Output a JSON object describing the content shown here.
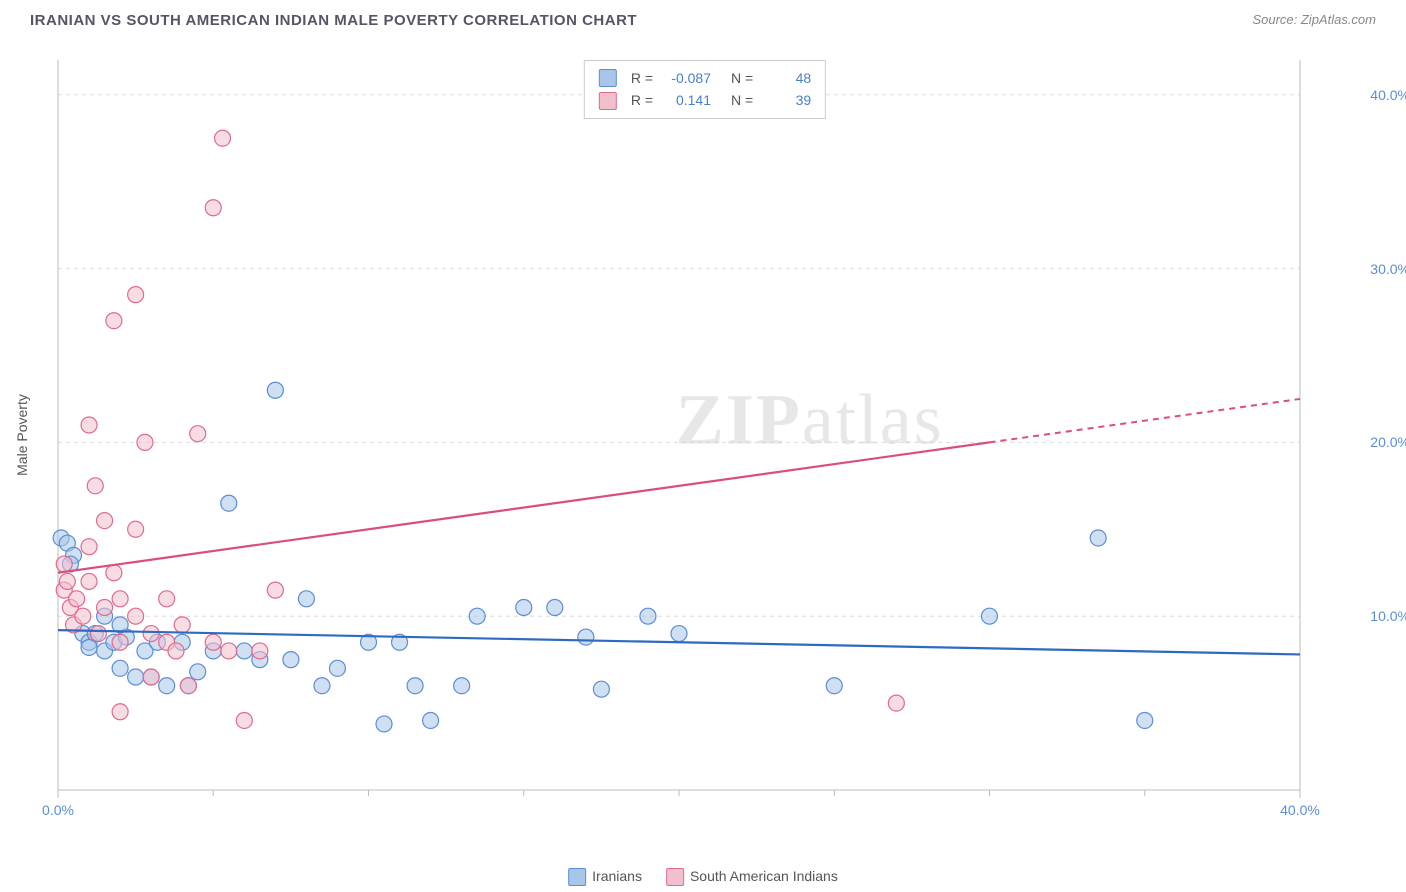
{
  "title": "IRANIAN VS SOUTH AMERICAN INDIAN MALE POVERTY CORRELATION CHART",
  "source_label": "Source: ",
  "source_name": "ZipAtlas.com",
  "ylabel": "Male Poverty",
  "watermark_a": "ZIP",
  "watermark_b": "atlas",
  "chart": {
    "type": "scatter",
    "xlim": [
      0,
      40
    ],
    "ylim": [
      0,
      42
    ],
    "xticks": [
      0,
      40
    ],
    "xtick_labels": [
      "0.0%",
      "40.0%"
    ],
    "xtick_minor": [
      5,
      10,
      15,
      20,
      25,
      30,
      35
    ],
    "yticks": [
      10,
      20,
      30,
      40
    ],
    "ytick_labels": [
      "10.0%",
      "20.0%",
      "30.0%",
      "40.0%"
    ],
    "grid_color": "#dddddd",
    "axis_color": "#bbbbbb",
    "background_color": "#ffffff"
  },
  "series": [
    {
      "name": "Iranians",
      "fill": "#a8c6ea",
      "stroke": "#5b8dd6",
      "line_color": "#2e6bc0",
      "marker_radius": 8,
      "points": [
        [
          0.1,
          14.5
        ],
        [
          0.3,
          14.2
        ],
        [
          0.5,
          13.5
        ],
        [
          0.4,
          13.0
        ],
        [
          0.8,
          9.0
        ],
        [
          1.0,
          8.5
        ],
        [
          1.2,
          9.0
        ],
        [
          1.5,
          8.0
        ],
        [
          1.5,
          10.0
        ],
        [
          1.8,
          8.5
        ],
        [
          2.0,
          7.0
        ],
        [
          2.2,
          8.8
        ],
        [
          2.5,
          6.5
        ],
        [
          2.8,
          8.0
        ],
        [
          3.0,
          6.5
        ],
        [
          3.2,
          8.5
        ],
        [
          3.5,
          6.0
        ],
        [
          4.0,
          8.5
        ],
        [
          4.2,
          6.0
        ],
        [
          4.5,
          6.8
        ],
        [
          5.0,
          8.0
        ],
        [
          5.5,
          16.5
        ],
        [
          6.0,
          8.0
        ],
        [
          6.5,
          7.5
        ],
        [
          7.0,
          23.0
        ],
        [
          7.5,
          7.5
        ],
        [
          8.0,
          11.0
        ],
        [
          8.5,
          6.0
        ],
        [
          9.0,
          7.0
        ],
        [
          10.0,
          8.5
        ],
        [
          10.5,
          3.8
        ],
        [
          11.0,
          8.5
        ],
        [
          11.5,
          6.0
        ],
        [
          12.0,
          4.0
        ],
        [
          13.0,
          6.0
        ],
        [
          13.5,
          10.0
        ],
        [
          15.0,
          10.5
        ],
        [
          16.0,
          10.5
        ],
        [
          17.0,
          8.8
        ],
        [
          17.5,
          5.8
        ],
        [
          19.0,
          10.0
        ],
        [
          20.0,
          9.0
        ],
        [
          25.0,
          6.0
        ],
        [
          30.0,
          10.0
        ],
        [
          33.5,
          14.5
        ],
        [
          35.0,
          4.0
        ],
        [
          1.0,
          8.2
        ],
        [
          2.0,
          9.5
        ]
      ],
      "trend": {
        "y1": 9.2,
        "y2": 7.8,
        "x1": 0,
        "x2": 40,
        "dash_from": 40,
        "dash_to": 40
      }
    },
    {
      "name": "South American Indians",
      "fill": "#f2c0cd",
      "stroke": "#e06a8c",
      "line_color": "#d94f79",
      "marker_radius": 8,
      "points": [
        [
          0.2,
          11.5
        ],
        [
          0.3,
          12.0
        ],
        [
          0.4,
          10.5
        ],
        [
          0.5,
          9.5
        ],
        [
          0.6,
          11.0
        ],
        [
          0.8,
          10.0
        ],
        [
          1.0,
          21.0
        ],
        [
          1.0,
          12.0
        ],
        [
          1.2,
          17.5
        ],
        [
          1.3,
          9.0
        ],
        [
          1.5,
          15.5
        ],
        [
          1.5,
          10.5
        ],
        [
          1.8,
          27.0
        ],
        [
          2.0,
          11.0
        ],
        [
          2.0,
          8.5
        ],
        [
          2.0,
          4.5
        ],
        [
          2.5,
          28.5
        ],
        [
          2.5,
          15.0
        ],
        [
          2.5,
          10.0
        ],
        [
          2.8,
          20.0
        ],
        [
          3.0,
          9.0
        ],
        [
          3.0,
          6.5
        ],
        [
          3.5,
          11.0
        ],
        [
          3.5,
          8.5
        ],
        [
          4.0,
          9.5
        ],
        [
          4.2,
          6.0
        ],
        [
          4.5,
          20.5
        ],
        [
          5.0,
          33.5
        ],
        [
          5.0,
          8.5
        ],
        [
          5.3,
          37.5
        ],
        [
          5.5,
          8.0
        ],
        [
          6.0,
          4.0
        ],
        [
          6.5,
          8.0
        ],
        [
          7.0,
          11.5
        ],
        [
          0.2,
          13.0
        ],
        [
          1.0,
          14.0
        ],
        [
          1.8,
          12.5
        ],
        [
          3.8,
          8.0
        ],
        [
          27.0,
          5.0
        ]
      ],
      "trend": {
        "y1": 12.5,
        "y2": 22.5,
        "x1": 0,
        "x2": 40,
        "dash_from": 30,
        "dash_to": 40
      }
    }
  ],
  "correlation": [
    {
      "swatch_fill": "#a8c6ea",
      "swatch_stroke": "#5b8dd6",
      "r": "-0.087",
      "n": "48"
    },
    {
      "swatch_fill": "#f2c0cd",
      "swatch_stroke": "#e06a8c",
      "r": "0.141",
      "n": "39"
    }
  ],
  "legend": [
    {
      "swatch_fill": "#a8c6ea",
      "swatch_stroke": "#5b8dd6",
      "label": "Iranians"
    },
    {
      "swatch_fill": "#f2c0cd",
      "swatch_stroke": "#e06a8c",
      "label": "South American Indians"
    }
  ]
}
